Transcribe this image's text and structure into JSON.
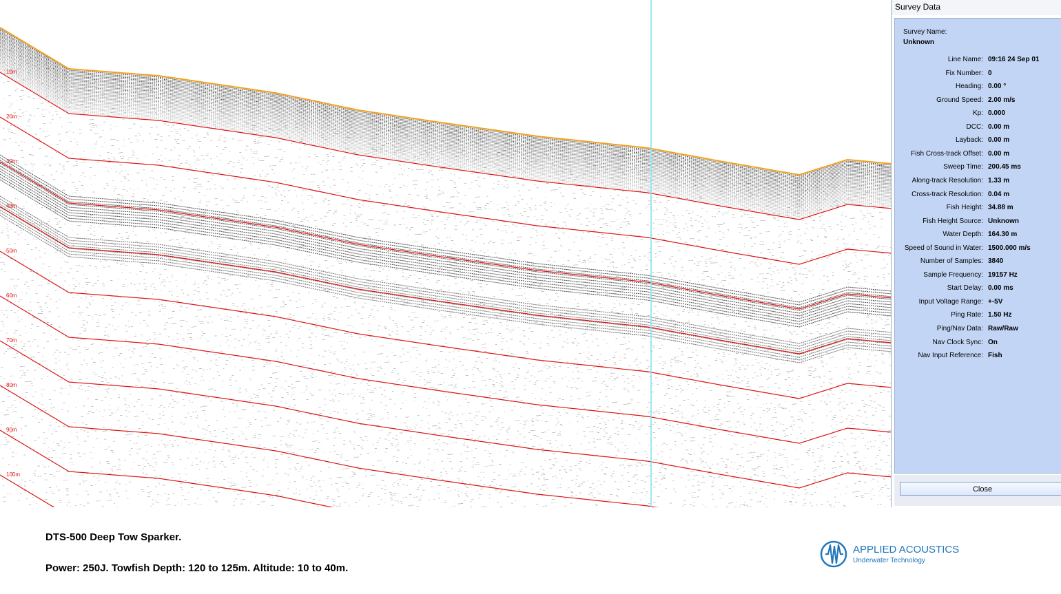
{
  "window": {
    "title": "Survey Data"
  },
  "depth_markers": [
    "10m",
    "20m",
    "30m",
    "40m",
    "50m",
    "60m",
    "70m",
    "80m",
    "90m",
    "100m"
  ],
  "survey": {
    "name_label": "Survey Name:",
    "name_value": "Unknown",
    "fields": [
      {
        "label": "Line Name:",
        "value": "09:16 24 Sep 01"
      },
      {
        "label": "Fix Number:",
        "value": "0"
      },
      {
        "label": "Heading:",
        "value": "0.00 °"
      },
      {
        "label": "Ground Speed:",
        "value": "2.00 m/s"
      },
      {
        "label": "Kp:",
        "value": "0.000"
      },
      {
        "label": "DCC:",
        "value": "0.00 m"
      },
      {
        "label": "Layback:",
        "value": "0.00 m"
      },
      {
        "label": "Fish Cross-track Offset:",
        "value": "0.00 m"
      },
      {
        "label": "Sweep Time:",
        "value": "200.45 ms"
      },
      {
        "label": "Along-track Resolution:",
        "value": "1.33 m"
      },
      {
        "label": "Cross-track Resolution:",
        "value": "0.04 m"
      },
      {
        "label": "Fish Height:",
        "value": "34.88 m"
      },
      {
        "label": "Fish Height Source:",
        "value": "Unknown"
      },
      {
        "label": "Water Depth:",
        "value": "164.30 m"
      },
      {
        "label": "Speed of Sound in Water:",
        "value": "1500.000 m/s"
      },
      {
        "label": "Number of Samples:",
        "value": "3840"
      },
      {
        "label": "Sample Frequency:",
        "value": "19157 Hz"
      },
      {
        "label": "Start Delay:",
        "value": "0.00 ms"
      },
      {
        "label": "Input Voltage Range:",
        "value": "+-5V"
      },
      {
        "label": "Ping Rate:",
        "value": "1.50 Hz"
      },
      {
        "label": "Ping/Nav Data:",
        "value": "Raw/Raw"
      },
      {
        "label": "Nav Clock Sync:",
        "value": "On"
      },
      {
        "label": "Nav Input Reference:",
        "value": "Fish"
      }
    ],
    "close_label": "Close"
  },
  "captions": {
    "line1": "DTS-500 Deep Tow Sparker.",
    "line2": "Power: 250J. Towfish Depth: 120 to 125m. Altitude: 10 to 40m."
  },
  "logo": {
    "name": "APPLIED ACOUSTICS",
    "tagline": "Underwater Technology"
  },
  "colors": {
    "seabed_line": "#f0a020",
    "depth_lines": "#dd1111",
    "cursor_line": "#7fe0ee",
    "panel_bg": "#c2d5f5",
    "brand": "#2277bb"
  }
}
